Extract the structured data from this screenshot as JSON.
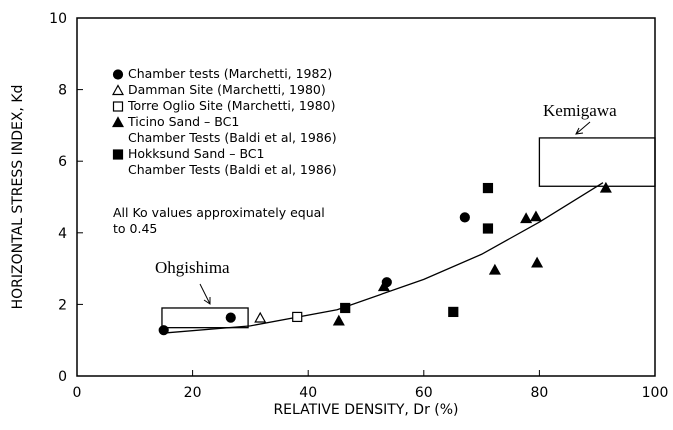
{
  "chart_data": {
    "type": "scatter",
    "xlabel": "RELATIVE DENSITY, Dr (%)",
    "ylabel": "HORIZONTAL STRESS INDEX, Kd",
    "xlim": [
      0,
      100
    ],
    "xticks": [
      0,
      20,
      40,
      60,
      80,
      100
    ],
    "ylim": [
      0,
      10
    ],
    "yticks": [
      0,
      2,
      4,
      6,
      8,
      10
    ],
    "series": [
      {
        "name": "Chamber tests (Marchetti, 1982)",
        "marker": "circle",
        "filled": true,
        "color": "#000000",
        "x": [
          15,
          26.6,
          53.6,
          67.1
        ],
        "values": [
          1.28,
          1.63,
          2.62,
          4.43
        ]
      },
      {
        "name": "Damman Site (Marchetti, 1980)",
        "marker": "triangle",
        "filled": false,
        "color": "#000000",
        "x": [
          31.7
        ],
        "values": [
          1.62
        ]
      },
      {
        "name": "Torre Oglio Site (Marchetti, 1980)",
        "marker": "square",
        "filled": false,
        "color": "#000000",
        "x": [
          38.1
        ],
        "values": [
          1.65
        ]
      },
      {
        "name": "Ticino Sand – BC1\nChamber Tests (Baldi et al, 1986)",
        "marker": "triangle",
        "filled": true,
        "color": "#000000",
        "x": [
          45.3,
          53.1,
          72.3,
          77.7,
          79.4,
          79.6,
          91.5
        ],
        "values": [
          1.54,
          2.5,
          2.96,
          4.4,
          4.45,
          3.16,
          5.25
        ]
      },
      {
        "name": "Hokksund Sand – BC1\nChamber Tests (Baldi et al, 1986)",
        "marker": "square",
        "filled": true,
        "color": "#000000",
        "x": [
          46.4,
          65.1,
          71.1,
          71.1
        ],
        "values": [
          1.9,
          1.79,
          4.12,
          5.25
        ]
      }
    ],
    "curve": {
      "x": [
        15,
        30,
        45,
        60,
        70,
        80,
        91
      ],
      "y": [
        1.2,
        1.4,
        1.85,
        2.7,
        3.4,
        4.3,
        5.4
      ]
    },
    "regions": [
      {
        "label": "Ohgishima",
        "x": [
          14.7,
          29.6
        ],
        "y": [
          1.35,
          1.9
        ]
      },
      {
        "label": "Kemigawa",
        "x": [
          80,
          100
        ],
        "y": [
          5.3,
          6.65
        ]
      }
    ],
    "note": [
      "All Ko values approximately equal",
      "to 0.45"
    ]
  }
}
